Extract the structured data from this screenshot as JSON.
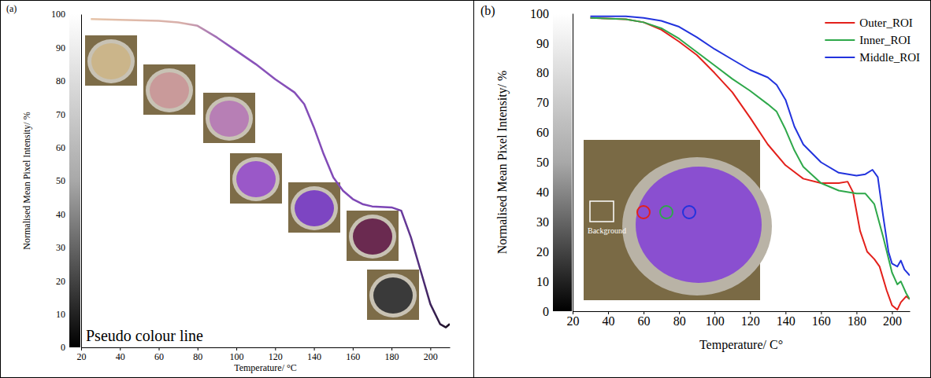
{
  "chart_data": [
    {
      "type": "line",
      "panel_label": "(a)",
      "x_label": "Temperature/ °C",
      "y_label": "Normalised Mean Pixel Intensity/ %",
      "annotation": "Pseudo colour line",
      "x": [
        25,
        40,
        60,
        70,
        80,
        90,
        100,
        110,
        120,
        130,
        135,
        140,
        145,
        150,
        155,
        160,
        165,
        170,
        180,
        185,
        190,
        195,
        200,
        205,
        208,
        210
      ],
      "values": [
        98.5,
        98.3,
        98,
        97.5,
        96.5,
        93,
        89,
        85,
        80.5,
        76.5,
        73,
        66,
        58,
        51,
        47,
        44.5,
        43,
        42.3,
        42,
        41,
        33,
        23,
        13,
        7,
        6,
        7
      ],
      "xlim": [
        20,
        210
      ],
      "xticks": [
        20,
        40,
        60,
        80,
        100,
        120,
        140,
        160,
        180,
        200
      ],
      "ylim": [
        0,
        100
      ],
      "yticks": [
        0,
        10,
        20,
        30,
        40,
        50,
        60,
        70,
        80,
        90,
        100
      ],
      "grid": false
    },
    {
      "type": "line",
      "panel_label": "(b)",
      "x_label": "Temperature/ C°",
      "y_label": "Normalised Mean Pixel Intensity/ %",
      "annotation": "Background",
      "legend": "upper right",
      "series": [
        {
          "name": "Outer_ROI",
          "color": "#e3201b",
          "x": [
            30,
            50,
            60,
            70,
            80,
            90,
            100,
            110,
            120,
            130,
            140,
            150,
            160,
            170,
            175,
            178,
            182,
            186,
            190,
            193,
            197,
            200,
            203,
            205,
            208,
            210
          ],
          "values": [
            98.5,
            98,
            97,
            94.5,
            90.5,
            86,
            80,
            73.5,
            65,
            56,
            49,
            44.5,
            43,
            43,
            43.5,
            40,
            27,
            20,
            17.5,
            15,
            7,
            2,
            0.5,
            3,
            5,
            4
          ]
        },
        {
          "name": "Inner_ROI",
          "color": "#2ea84a",
          "x": [
            30,
            50,
            60,
            70,
            80,
            90,
            100,
            110,
            120,
            130,
            135,
            140,
            145,
            150,
            160,
            170,
            180,
            185,
            190,
            195,
            200,
            203,
            205,
            208,
            210
          ],
          "values": [
            98.5,
            98,
            97,
            95,
            91.5,
            87,
            82.5,
            78,
            74,
            69.5,
            67,
            61,
            54,
            48.5,
            43,
            40.5,
            39.5,
            39.5,
            36,
            25,
            13,
            9,
            10,
            6,
            4
          ]
        },
        {
          "name": "Middle_ROI",
          "color": "#2233dd",
          "x": [
            30,
            50,
            60,
            70,
            80,
            90,
            100,
            110,
            120,
            130,
            135,
            140,
            145,
            150,
            160,
            170,
            180,
            185,
            189,
            192,
            195,
            198,
            200,
            203,
            205,
            207,
            210
          ],
          "values": [
            99,
            99,
            98.5,
            97.5,
            95.5,
            92,
            88,
            84.5,
            81,
            78.5,
            76,
            71,
            62,
            56,
            50,
            46.5,
            45.5,
            46,
            47.5,
            45,
            32,
            20,
            16,
            15,
            17,
            14,
            12
          ]
        }
      ],
      "xlim": [
        20,
        210
      ],
      "xticks": [
        20,
        40,
        60,
        80,
        100,
        120,
        140,
        160,
        180,
        200
      ],
      "ylim": [
        0,
        100
      ],
      "yticks": [
        0,
        10,
        20,
        30,
        40,
        50,
        60,
        70,
        80,
        90,
        100
      ],
      "grid": false
    }
  ]
}
